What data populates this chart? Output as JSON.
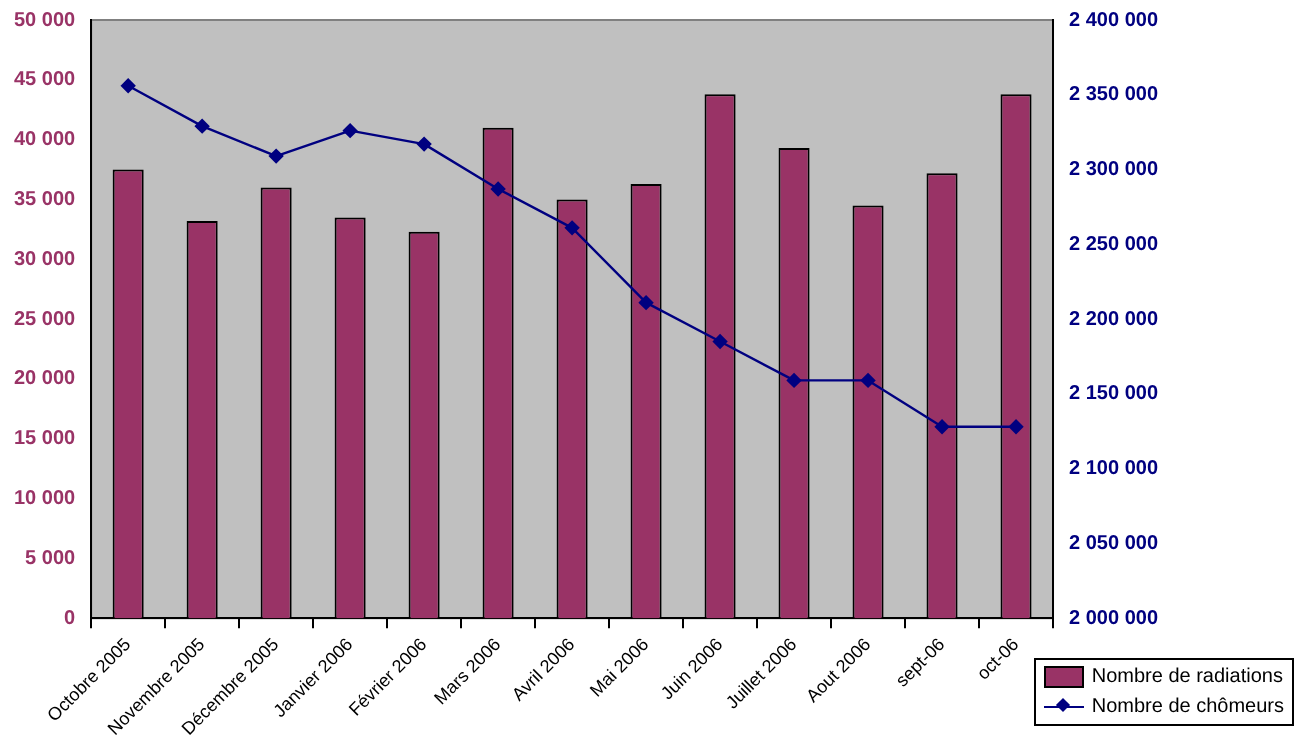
{
  "chart_data": {
    "type": "bar",
    "categories": [
      "Octobre 2005",
      "Novembre 2005",
      "Décembre 2005",
      "Janvier 2006",
      "Février 2006",
      "Mars 2006",
      "Avril 2006",
      "Mai 2006",
      "Juin 2006",
      "Juillet 2006",
      "Aout 2006",
      "sept-06",
      "oct-06"
    ],
    "series": [
      {
        "name": "Nombre de radiations",
        "color": "#993366",
        "values": [
          37500,
          33200,
          36000,
          33500,
          32300,
          41000,
          35000,
          36300,
          43800,
          39300,
          34500,
          37200,
          43800
        ]
      },
      {
        "name": "Nombre de chômeurs",
        "type": "line",
        "axis": "y2",
        "color": "#000080",
        "marker": "diamond",
        "values": [
          2356000,
          2329000,
          2309000,
          2326000,
          2317000,
          2287000,
          2261000,
          2211000,
          2185000,
          2159000,
          2159000,
          2128000,
          2128000
        ]
      }
    ],
    "ylim": [
      0,
      50000
    ],
    "yticks": [
      {
        "value": 0,
        "label": "0"
      },
      {
        "value": 5000,
        "label": "5 000"
      },
      {
        "value": 10000,
        "label": "10 000"
      },
      {
        "value": 15000,
        "label": "15 000"
      },
      {
        "value": 20000,
        "label": "20 000"
      },
      {
        "value": 25000,
        "label": "25 000"
      },
      {
        "value": 30000,
        "label": "30 000"
      },
      {
        "value": 35000,
        "label": "35 000"
      },
      {
        "value": 40000,
        "label": "40 000"
      },
      {
        "value": 45000,
        "label": "45 000"
      },
      {
        "value": 50000,
        "label": "50 000"
      }
    ],
    "y2lim": [
      2000000,
      2400000
    ],
    "y2ticks": [
      {
        "value": 2000000,
        "label": "2 000 000"
      },
      {
        "value": 2050000,
        "label": "2 050 000"
      },
      {
        "value": 2100000,
        "label": "2 100 000"
      },
      {
        "value": 2150000,
        "label": "2 150 000"
      },
      {
        "value": 2200000,
        "label": "2 200 000"
      },
      {
        "value": 2250000,
        "label": "2 250 000"
      },
      {
        "value": 2300000,
        "label": "2 300 000"
      },
      {
        "value": 2350000,
        "label": "2 350 000"
      },
      {
        "value": 2400000,
        "label": "2 400 000"
      }
    ],
    "grid": false,
    "legend": "bottom right"
  }
}
